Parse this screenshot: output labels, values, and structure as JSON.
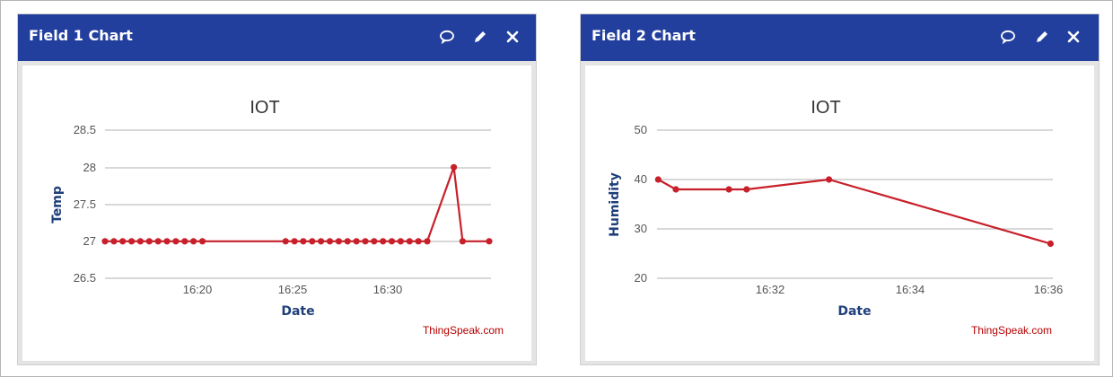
{
  "colors": {
    "header_bg": "#233f9e",
    "line": "#c8202a",
    "grid": "#c0c0c0",
    "axis_title": "#1e3f7a",
    "credit": "#b40000"
  },
  "widgets": [
    {
      "header_title": "Field 1 Chart",
      "icons": [
        "comment-icon",
        "pencil-icon",
        "close-icon"
      ],
      "chart_data": {
        "type": "line",
        "title": "IOT",
        "xlabel": "Date",
        "ylabel": "Temp",
        "credit": "ThingSpeak.com",
        "grid": true,
        "legend": "none",
        "x_axis": "time",
        "xlim": [
          "16:16:00",
          "16:34:10"
        ],
        "x_ticks": [
          "16:20",
          "16:25",
          "16:30"
        ],
        "ylim": [
          26.5,
          28.5
        ],
        "y_ticks": [
          "26.5",
          "27",
          "27.5",
          "28",
          "28.5"
        ],
        "series": [
          {
            "x": [
              "16:16:00",
              "16:16:25",
              "16:16:50",
              "16:17:15",
              "16:17:40",
              "16:18:05",
              "16:18:30",
              "16:18:55",
              "16:19:20",
              "16:19:45",
              "16:20:10",
              "16:20:35",
              "16:24:30",
              "16:24:55",
              "16:25:20",
              "16:25:45",
              "16:26:10",
              "16:26:35",
              "16:27:00",
              "16:27:25",
              "16:27:50",
              "16:28:15",
              "16:28:40",
              "16:29:05",
              "16:29:30",
              "16:29:55",
              "16:30:20",
              "16:30:45",
              "16:31:10",
              "16:32:25",
              "16:32:50",
              "16:34:05"
            ],
            "y": [
              27,
              27,
              27,
              27,
              27,
              27,
              27,
              27,
              27,
              27,
              27,
              27,
              27,
              27,
              27,
              27,
              27,
              27,
              27,
              27,
              27,
              27,
              27,
              27,
              27,
              27,
              27,
              27,
              27,
              28,
              27,
              27
            ]
          }
        ]
      }
    },
    {
      "header_title": "Field 2 Chart",
      "icons": [
        "comment-icon",
        "pencil-icon",
        "close-icon"
      ],
      "chart_data": {
        "type": "line",
        "title": "IOT",
        "xlabel": "Date",
        "ylabel": "Humidity",
        "credit": "ThingSpeak.com",
        "grid": true,
        "legend": "none",
        "x_axis": "time",
        "xlim": [
          "16:30:29",
          "16:36:05"
        ],
        "x_ticks": [
          "16:32",
          "16:34",
          "16:36"
        ],
        "ylim": [
          20,
          50
        ],
        "y_ticks": [
          "20",
          "30",
          "40",
          "50"
        ],
        "series": [
          {
            "x": [
              "16:30:30",
              "16:30:45",
              "16:31:30",
              "16:31:45",
              "16:32:55",
              "16:36:03"
            ],
            "y": [
              40,
              38,
              38,
              38,
              40,
              27
            ]
          }
        ]
      }
    }
  ]
}
